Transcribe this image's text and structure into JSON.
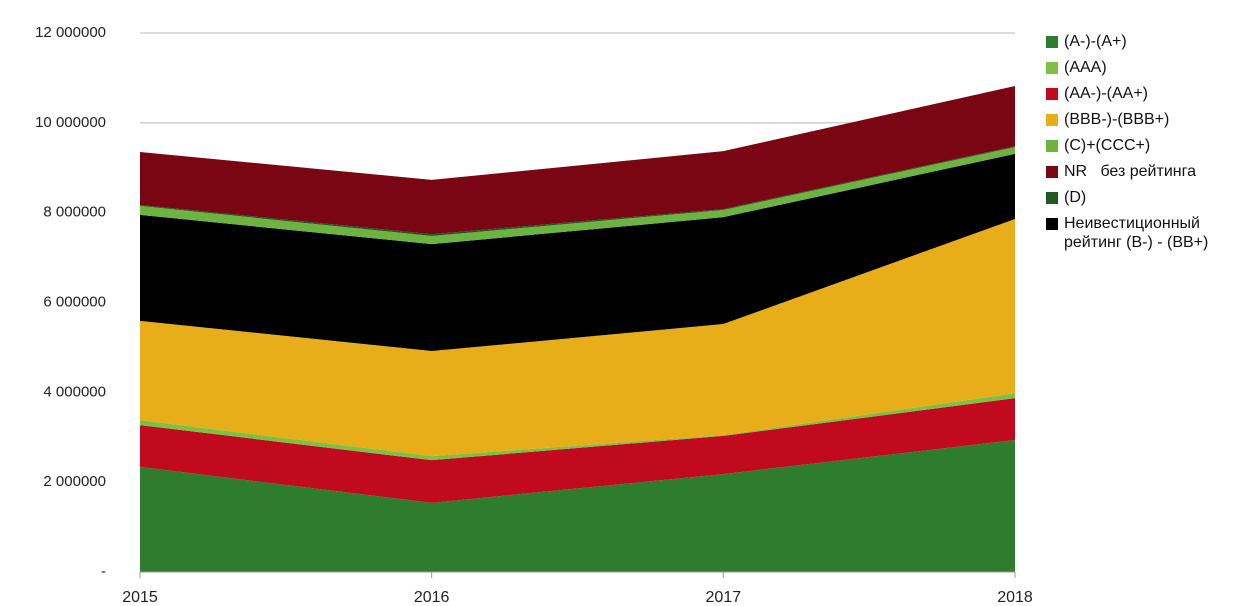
{
  "chart_data": {
    "type": "area",
    "x": [
      2015,
      2016,
      2017,
      2018
    ],
    "xlim": [
      2015,
      2018
    ],
    "xticks": [
      2015,
      2016,
      2017,
      2018
    ],
    "ylim": [
      0,
      12000000
    ],
    "yticks": [
      {
        "value": 0,
        "label": "-"
      },
      {
        "value": 2000000,
        "label": "2 000000"
      },
      {
        "value": 4000000,
        "label": "4 000000"
      },
      {
        "value": 6000000,
        "label": "6 000000"
      },
      {
        "value": 8000000,
        "label": "8 000000"
      },
      {
        "value": 10000000,
        "label": "10 000000"
      },
      {
        "value": 12000000,
        "label": "12 000000"
      }
    ],
    "grid": true,
    "stacked": true,
    "legend": "right",
    "series": [
      {
        "name": "(A-)-(A+)",
        "color": "#2e7d2e",
        "values": [
          2340000,
          1540000,
          2180000,
          2940000
        ]
      },
      {
        "name": "(AA-)-(AA+)",
        "color": "#c20a1e",
        "values": [
          930000,
          950000,
          850000,
          930000
        ]
      },
      {
        "name": "(AAA)",
        "color": "#7dc043",
        "values": [
          110000,
          90000,
          20000,
          110000
        ]
      },
      {
        "name": "(BBB-)-(BBB+)",
        "color": "#e8ae1a",
        "values": [
          2210000,
          2340000,
          2470000,
          3880000
        ]
      },
      {
        "name": "Неивестиционный рейтинг (B-) - (BB+)",
        "color": "#000000",
        "values": [
          2360000,
          2380000,
          2380000,
          1450000
        ]
      },
      {
        "name": "(C)+(CCC+)",
        "color": "#6cb33f",
        "values": [
          200000,
          180000,
          160000,
          150000
        ]
      },
      {
        "name": "(D)",
        "color": "#1f5a22",
        "values": [
          20000,
          40000,
          20000,
          20000
        ]
      },
      {
        "name": "NR   без рейтинга",
        "color": "#7a0614",
        "values": [
          1180000,
          1210000,
          1290000,
          1340000
        ]
      }
    ]
  }
}
